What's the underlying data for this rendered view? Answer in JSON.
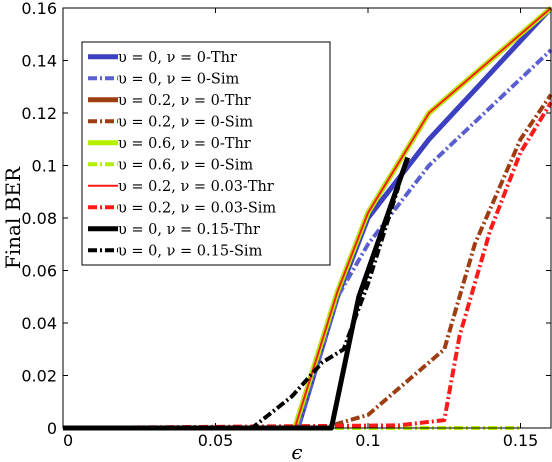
{
  "chart_data": {
    "type": "line",
    "xlabel": "ϵ",
    "ylabel": "Final BER",
    "xlim": [
      0,
      0.16
    ],
    "ylim": [
      0,
      0.16
    ],
    "xticks": [
      0,
      0.05,
      0.1,
      0.15
    ],
    "xtick_labels": [
      "0",
      "0.05",
      "0.1",
      "0.15"
    ],
    "yticks": [
      0,
      0.02,
      0.04,
      0.06,
      0.08,
      0.1,
      0.12,
      0.14,
      0.16
    ],
    "ytick_labels": [
      "0",
      "0.02",
      "0.04",
      "0.06",
      "0.08",
      "0.1",
      "0.12",
      "0.14",
      "0.16"
    ],
    "grid": false,
    "legend_position": "top-left",
    "series": [
      {
        "name": "υ = 0, ν = 0-Thr",
        "color": "#3b3fc0",
        "dash": "solid",
        "width": 5,
        "points": [
          [
            0,
            0
          ],
          [
            0.077,
            0
          ],
          [
            0.09,
            0.05
          ],
          [
            0.1,
            0.08
          ],
          [
            0.12,
            0.11
          ],
          [
            0.16,
            0.16
          ]
        ]
      },
      {
        "name": "υ = 0, ν = 0-Sim",
        "color": "#5a5fcf",
        "dash": "dashdot",
        "width": 4,
        "points": [
          [
            0,
            0
          ],
          [
            0.077,
            0
          ],
          [
            0.09,
            0.05
          ],
          [
            0.1,
            0.07
          ],
          [
            0.12,
            0.1
          ],
          [
            0.16,
            0.144
          ]
        ]
      },
      {
        "name": "υ = 0.2, ν = 0-Thr",
        "color": "#9c3d12",
        "dash": "solid",
        "width": 5,
        "points": [
          [
            0,
            0
          ],
          [
            0.076,
            0
          ],
          [
            0.09,
            0.052
          ],
          [
            0.1,
            0.082
          ],
          [
            0.12,
            0.12
          ],
          [
            0.16,
            0.16
          ]
        ]
      },
      {
        "name": "υ = 0.2, ν = 0-Sim",
        "color": "#9c3d12",
        "dash": "dashdot",
        "width": 4,
        "points": [
          [
            0,
            0
          ],
          [
            0.085,
            0
          ],
          [
            0.1,
            0.005
          ],
          [
            0.115,
            0.02
          ],
          [
            0.125,
            0.03
          ],
          [
            0.135,
            0.07
          ],
          [
            0.15,
            0.11
          ],
          [
            0.16,
            0.127
          ]
        ]
      },
      {
        "name": "υ = 0.6, ν = 0-Thr",
        "color": "#b4f000",
        "dash": "solid",
        "width": 5,
        "points": [
          [
            0,
            0
          ],
          [
            0.076,
            0
          ],
          [
            0.09,
            0.052
          ],
          [
            0.1,
            0.082
          ],
          [
            0.12,
            0.12
          ],
          [
            0.16,
            0.16
          ]
        ]
      },
      {
        "name": "υ = 0.6, ν = 0-Sim",
        "color": "#b4f000",
        "dash": "dashdot",
        "width": 4,
        "points": [
          [
            0,
            0
          ],
          [
            0.15,
            0
          ]
        ]
      },
      {
        "name": "υ = 0.2, ν = 0.03-Thr",
        "color": "#ff1a1a",
        "dash": "solid",
        "width": 2,
        "points": [
          [
            0,
            0
          ],
          [
            0.076,
            0
          ],
          [
            0.09,
            0.052
          ],
          [
            0.1,
            0.082
          ],
          [
            0.12,
            0.12
          ],
          [
            0.16,
            0.16
          ]
        ]
      },
      {
        "name": "υ = 0.2, ν = 0.03-Sim",
        "color": "#ff1a1a",
        "dash": "dashdot",
        "width": 4,
        "points": [
          [
            0,
            0
          ],
          [
            0.11,
            0.001
          ],
          [
            0.125,
            0.003
          ],
          [
            0.13,
            0.035
          ],
          [
            0.14,
            0.075
          ],
          [
            0.15,
            0.105
          ],
          [
            0.16,
            0.124
          ]
        ]
      },
      {
        "name": "υ = 0, ν = 0.15-Thr",
        "color": "#000000",
        "dash": "solid",
        "width": 5,
        "points": [
          [
            0,
            0
          ],
          [
            0.088,
            0
          ],
          [
            0.097,
            0.05
          ],
          [
            0.113,
            0.103
          ]
        ]
      },
      {
        "name": "υ = 0, ν = 0.15-Sim",
        "color": "#000000",
        "dash": "dashdot",
        "width": 4,
        "points": [
          [
            0,
            0
          ],
          [
            0.062,
            0
          ],
          [
            0.075,
            0.012
          ],
          [
            0.085,
            0.025
          ],
          [
            0.092,
            0.03
          ],
          [
            0.1,
            0.055
          ],
          [
            0.11,
            0.092
          ]
        ]
      }
    ]
  }
}
